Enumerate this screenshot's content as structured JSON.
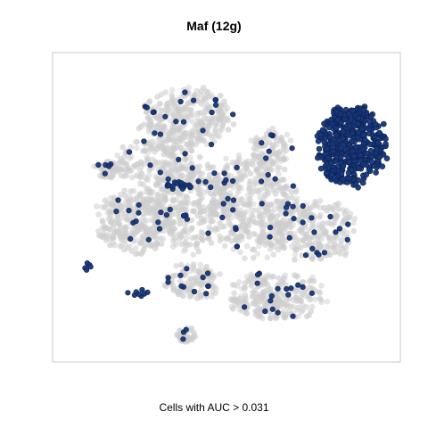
{
  "chart_data": {
    "type": "scatter",
    "title": "Maf (12g)",
    "caption": "Cells with AUC > 0.031",
    "xlabel": "",
    "ylabel": "",
    "axes_visible": false,
    "grid": false,
    "legend": "none",
    "xlim": [
      0,
      100
    ],
    "ylim": [
      0,
      100
    ],
    "colors": {
      "background_cells": "#cdcdcd",
      "positive_cells": "#17377a",
      "positive_edge": "#0b1f4a",
      "frame": "#c8c8c8"
    },
    "series": [
      {
        "role": "background",
        "clusters": [
          {
            "cx": 38,
            "cy": 80,
            "rx": 13,
            "ry": 10,
            "n": 320
          },
          {
            "cx": 30,
            "cy": 65,
            "rx": 12,
            "ry": 9,
            "n": 200
          },
          {
            "cx": 15,
            "cy": 63,
            "rx": 4,
            "ry": 3,
            "n": 60
          },
          {
            "cx": 23,
            "cy": 45,
            "rx": 12,
            "ry": 10,
            "n": 320
          },
          {
            "cx": 40,
            "cy": 50,
            "rx": 12,
            "ry": 14,
            "n": 300
          },
          {
            "cx": 58,
            "cy": 52,
            "rx": 12,
            "ry": 18,
            "n": 420
          },
          {
            "cx": 76,
            "cy": 42,
            "rx": 12,
            "ry": 10,
            "n": 240
          },
          {
            "cx": 65,
            "cy": 20,
            "rx": 14,
            "ry": 8,
            "n": 260
          },
          {
            "cx": 40,
            "cy": 25,
            "rx": 8,
            "ry": 6,
            "n": 120
          },
          {
            "cx": 38,
            "cy": 7,
            "rx": 3,
            "ry": 2.5,
            "n": 40
          },
          {
            "cx": 63,
            "cy": 70,
            "rx": 6,
            "ry": 6,
            "n": 80
          }
        ]
      },
      {
        "role": "positive",
        "name": "Cells with AUC > 0.031",
        "dense_cluster": {
          "cx": 87,
          "cy": 71,
          "rx": 10,
          "ry": 13,
          "n": 480
        },
        "scattered_n": 140,
        "small_groups": [
          {
            "cx": 36,
            "cy": 57,
            "rx": 4,
            "ry": 1.5,
            "n": 14
          },
          {
            "cx": 9,
            "cy": 30,
            "rx": 1,
            "ry": 2,
            "n": 5
          },
          {
            "cx": 24,
            "cy": 21,
            "rx": 3,
            "ry": 2,
            "n": 8
          }
        ]
      }
    ]
  }
}
